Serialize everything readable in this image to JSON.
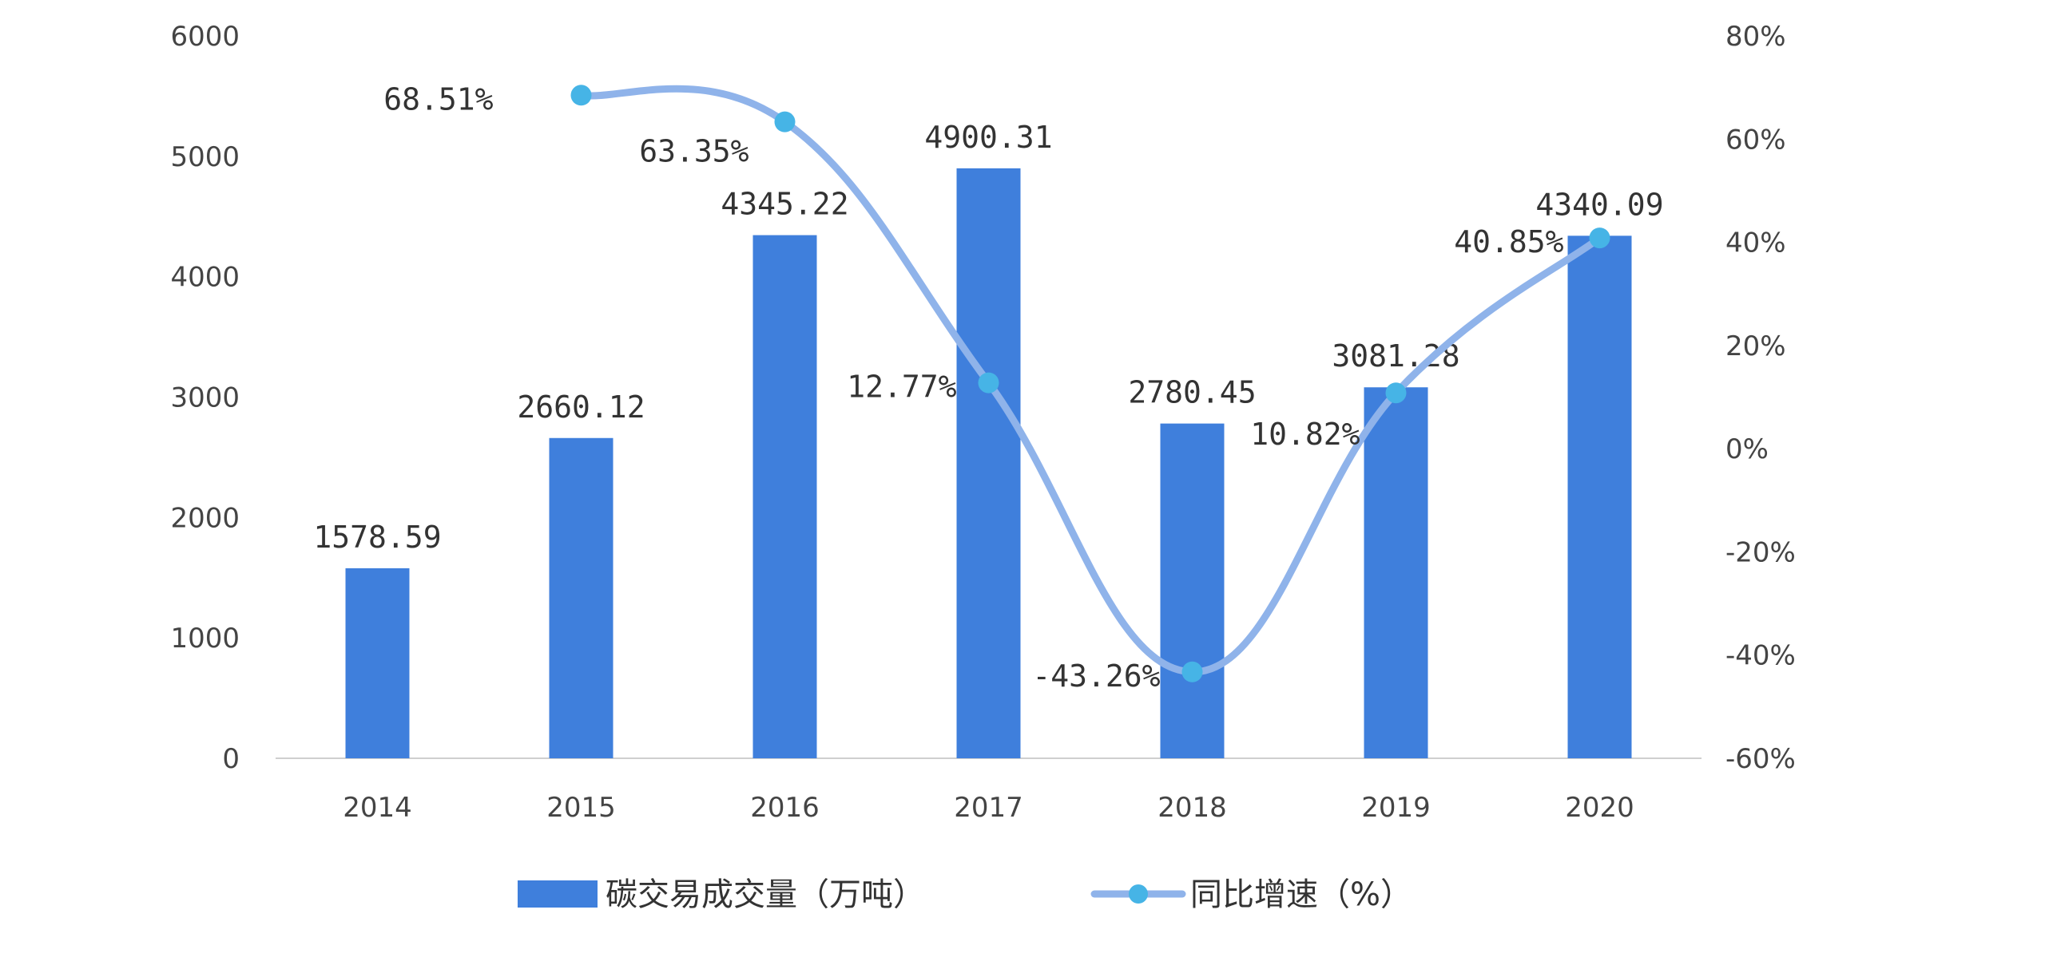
{
  "chart_data": {
    "type": "bar",
    "categories": [
      "2014",
      "2015",
      "2016",
      "2017",
      "2018",
      "2019",
      "2020"
    ],
    "series": [
      {
        "name": "碳交易成交量（万吨）",
        "type": "bar",
        "axis": "left",
        "values": [
          1578.59,
          2660.12,
          4345.22,
          4900.31,
          2780.45,
          3081.28,
          4340.09
        ],
        "labels": [
          "1578.59",
          "2660.12",
          "4345.22",
          "4900.31",
          "2780.45",
          "3081.28",
          "4340.09"
        ],
        "color": "#3f7fdc"
      },
      {
        "name": "同比增速（%）",
        "type": "line",
        "axis": "right",
        "values": [
          null,
          68.51,
          63.35,
          12.77,
          -43.26,
          10.82,
          40.85
        ],
        "labels": [
          null,
          "68.51%",
          "63.35%",
          "12.77%",
          "-43.26%",
          "10.82%",
          "40.85%"
        ],
        "color": "#8fb3ea",
        "marker_color": "#46b4e6"
      }
    ],
    "y_left": {
      "min": 0,
      "max": 6000,
      "ticks": [
        "0",
        "1000",
        "2000",
        "3000",
        "4000",
        "5000",
        "6000"
      ]
    },
    "y_right": {
      "min": -60,
      "max": 80,
      "ticks": [
        "-60%",
        "-40%",
        "-20%",
        "0%",
        "20%",
        "40%",
        "60%",
        "80%"
      ]
    },
    "grid": false,
    "legend": "bottom-center"
  }
}
